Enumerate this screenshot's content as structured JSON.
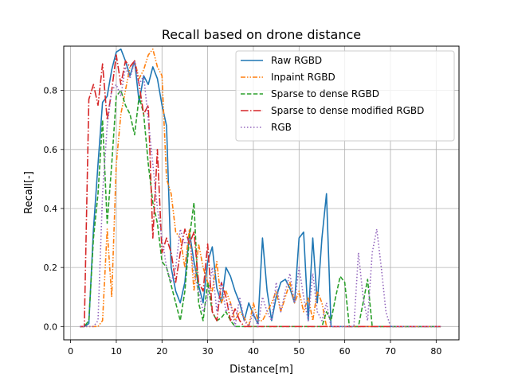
{
  "chart_data": {
    "type": "line",
    "title": "Recall based on drone distance",
    "xlabel": "Distance[m]",
    "ylabel": "Recall[-]",
    "xlim": [
      -1.5,
      85
    ],
    "ylim": [
      -0.045,
      0.95
    ],
    "xticks": [
      0,
      10,
      20,
      30,
      40,
      50,
      60,
      70,
      80
    ],
    "yticks": [
      0.0,
      0.2,
      0.4,
      0.6,
      0.8
    ],
    "xtick_labels": [
      "0",
      "10",
      "20",
      "30",
      "40",
      "50",
      "60",
      "70",
      "80"
    ],
    "ytick_labels": [
      "0.0",
      "0.2",
      "0.4",
      "0.6",
      "0.8"
    ],
    "grid": true,
    "legend_position": "top-right",
    "series": [
      {
        "name": "Raw RGBD",
        "color": "#1f77b4",
        "dash": "solid",
        "x": [
          2,
          3,
          4,
          5,
          6,
          7,
          8,
          9,
          10,
          11,
          12,
          13,
          14,
          15,
          16,
          17,
          18,
          19,
          20,
          21,
          22,
          23,
          24,
          25,
          26,
          27,
          28,
          29,
          30,
          31,
          32,
          33,
          34,
          35,
          36,
          37,
          38,
          39,
          40,
          41,
          42,
          43,
          44,
          45,
          46,
          47,
          48,
          49,
          50,
          51,
          52,
          53,
          54,
          55,
          56,
          57,
          58,
          59,
          60,
          61,
          62,
          63,
          64,
          65,
          66,
          67,
          68,
          69,
          70,
          71,
          72,
          73,
          74,
          75,
          76,
          77,
          78,
          79,
          80,
          81
        ],
        "y": [
          0,
          0,
          0.01,
          0.33,
          0.55,
          0.76,
          0.78,
          0.87,
          0.93,
          0.94,
          0.9,
          0.85,
          0.9,
          0.76,
          0.85,
          0.82,
          0.88,
          0.84,
          0.75,
          0.68,
          0.2,
          0.12,
          0.08,
          0.15,
          0.32,
          0.22,
          0.14,
          0.08,
          0.22,
          0.27,
          0.13,
          0.08,
          0.2,
          0.17,
          0.12,
          0.08,
          0.02,
          0.08,
          0.04,
          0.01,
          0.3,
          0.12,
          0.02,
          0.1,
          0.15,
          0.16,
          0.13,
          0.08,
          0.3,
          0.32,
          0.02,
          0.3,
          0.08,
          0.3,
          0.45,
          0,
          0,
          0,
          0,
          0,
          0,
          0,
          0,
          0,
          0,
          0,
          0,
          0,
          0,
          0,
          0,
          0,
          0,
          0,
          0,
          0,
          0,
          0,
          0,
          0
        ]
      },
      {
        "name": "Inpaint RGBD",
        "color": "#ff7f0e",
        "dash": "dashdotdot",
        "x": [
          2,
          3,
          4,
          5,
          6,
          7,
          8,
          9,
          10,
          11,
          12,
          13,
          14,
          15,
          16,
          17,
          18,
          19,
          20,
          21,
          22,
          23,
          24,
          25,
          26,
          27,
          28,
          29,
          30,
          31,
          32,
          33,
          34,
          35,
          36,
          37,
          38,
          39,
          40,
          41,
          42,
          43,
          44,
          45,
          46,
          47,
          48,
          49,
          50,
          51,
          52,
          53,
          54,
          55,
          56,
          57,
          58,
          59,
          60,
          61,
          62,
          63,
          64,
          65,
          66,
          67,
          68,
          69,
          70,
          71,
          72,
          73,
          74,
          75,
          76,
          77,
          78,
          79,
          80,
          81
        ],
        "y": [
          0,
          0,
          0,
          0,
          0,
          0.02,
          0.33,
          0.1,
          0.55,
          0.72,
          0.8,
          0.88,
          0.9,
          0.84,
          0.87,
          0.92,
          0.94,
          0.88,
          0.85,
          0.5,
          0.45,
          0.32,
          0.3,
          0.2,
          0.33,
          0.12,
          0.28,
          0.2,
          0.15,
          0.12,
          0.22,
          0.08,
          0.12,
          0.08,
          0.02,
          0.05,
          0.03,
          0,
          0.08,
          0.02,
          0.02,
          0.05,
          0.08,
          0.12,
          0.05,
          0.1,
          0.15,
          0.08,
          0.12,
          0.05,
          0.1,
          0.02,
          0.12,
          0.08,
          0,
          0,
          0,
          0,
          0,
          0,
          0,
          0,
          0,
          0,
          0,
          0,
          0,
          0,
          0,
          0,
          0,
          0,
          0,
          0,
          0,
          0,
          0,
          0,
          0,
          0
        ]
      },
      {
        "name": "Sparse to dense RGBD",
        "color": "#2ca02c",
        "dash": "dashed",
        "x": [
          2,
          3,
          4,
          5,
          6,
          7,
          8,
          9,
          10,
          11,
          12,
          13,
          14,
          15,
          16,
          17,
          18,
          19,
          20,
          21,
          22,
          23,
          24,
          25,
          26,
          27,
          28,
          29,
          30,
          31,
          32,
          33,
          34,
          35,
          36,
          37,
          38,
          39,
          40,
          41,
          42,
          43,
          44,
          45,
          46,
          47,
          48,
          49,
          50,
          51,
          52,
          53,
          54,
          55,
          56,
          57,
          58,
          59,
          60,
          61,
          62,
          63,
          64,
          65,
          66,
          67,
          68,
          69,
          70,
          71,
          72,
          73,
          74,
          75,
          76,
          77,
          78,
          79,
          80,
          81
        ],
        "y": [
          0,
          0,
          0.02,
          0.3,
          0.45,
          0.7,
          0.35,
          0.55,
          0.78,
          0.8,
          0.75,
          0.72,
          0.65,
          0.78,
          0.72,
          0.55,
          0.42,
          0.35,
          0.22,
          0.2,
          0.14,
          0.08,
          0.02,
          0.12,
          0.3,
          0.42,
          0.08,
          0.02,
          0.15,
          0.05,
          0.02,
          0.03,
          0.05,
          0.02,
          0,
          0,
          0,
          0,
          0,
          0,
          0,
          0,
          0,
          0,
          0,
          0,
          0,
          0,
          0,
          0,
          0,
          0,
          0,
          0,
          0.05,
          0.02,
          0.1,
          0.17,
          0.15,
          0,
          0,
          0,
          0.08,
          0.16,
          0,
          0,
          0,
          0,
          0,
          0,
          0,
          0,
          0,
          0,
          0,
          0,
          0,
          0,
          0,
          0
        ]
      },
      {
        "name": "Sparse to dense modified RGBD",
        "color": "#d62728",
        "dash": "dashdot",
        "x": [
          2,
          3,
          4,
          5,
          6,
          7,
          8,
          9,
          10,
          11,
          12,
          13,
          14,
          15,
          16,
          17,
          18,
          19,
          20,
          21,
          22,
          23,
          24,
          25,
          26,
          27,
          28,
          29,
          30,
          31,
          32,
          33,
          34,
          35,
          36,
          37,
          38,
          39,
          40,
          41,
          42,
          43,
          44,
          45,
          46,
          47,
          48,
          49,
          50,
          51,
          52,
          53,
          54,
          55,
          56,
          57,
          58,
          59,
          60,
          61,
          62,
          63,
          64,
          65,
          66,
          67,
          68,
          69,
          70,
          71,
          72,
          73,
          74,
          75,
          76,
          77,
          78,
          79,
          80,
          81
        ],
        "y": [
          0,
          0,
          0.77,
          0.82,
          0.75,
          0.89,
          0.7,
          0.8,
          0.92,
          0.82,
          0.9,
          0.88,
          0.9,
          0.82,
          0.72,
          0.75,
          0.3,
          0.6,
          0.25,
          0.3,
          0.25,
          0.15,
          0.25,
          0.33,
          0.28,
          0.32,
          0.15,
          0.12,
          0.28,
          0.05,
          0.02,
          0.15,
          0.1,
          0.02,
          0.06,
          0.02,
          0,
          0,
          0,
          0,
          0,
          0,
          0,
          0,
          0,
          0,
          0,
          0,
          0,
          0,
          0,
          0,
          0,
          0,
          0,
          0,
          0,
          0,
          0,
          0,
          0,
          0,
          0,
          0,
          0,
          0,
          0,
          0,
          0,
          0,
          0,
          0,
          0,
          0,
          0,
          0,
          0,
          0,
          0,
          0
        ]
      },
      {
        "name": "RGB",
        "color": "#9467bd",
        "dash": "dotted",
        "x": [
          2,
          3,
          4,
          5,
          6,
          7,
          8,
          9,
          10,
          11,
          12,
          13,
          14,
          15,
          16,
          17,
          18,
          19,
          20,
          21,
          22,
          23,
          24,
          25,
          26,
          27,
          28,
          29,
          30,
          31,
          32,
          33,
          34,
          35,
          36,
          37,
          38,
          39,
          40,
          41,
          42,
          43,
          44,
          45,
          46,
          47,
          48,
          49,
          50,
          51,
          52,
          53,
          54,
          55,
          56,
          57,
          58,
          59,
          60,
          61,
          62,
          63,
          64,
          65,
          66,
          67,
          68,
          69,
          70,
          71,
          72,
          73,
          74,
          75,
          76,
          77,
          78,
          79,
          80,
          81
        ],
        "y": [
          0,
          0,
          0,
          0,
          0.02,
          0.45,
          0.68,
          0.8,
          0.82,
          0.78,
          0.88,
          0.84,
          0.9,
          0.82,
          0.85,
          0.7,
          0.55,
          0.4,
          0.3,
          0.2,
          0.15,
          0.2,
          0.33,
          0.28,
          0.3,
          0.18,
          0.12,
          0.05,
          0.1,
          0.2,
          0.05,
          0.15,
          0.05,
          0.08,
          0,
          0.1,
          0.02,
          0,
          0.05,
          0,
          0.1,
          0.05,
          0.02,
          0.15,
          0.05,
          0.12,
          0.18,
          0.08,
          0.2,
          0.1,
          0.02,
          0.18,
          0.05,
          0.02,
          0.08,
          0,
          0,
          0,
          0,
          0,
          0,
          0.25,
          0.1,
          0.02,
          0.25,
          0.33,
          0.2,
          0.05,
          0,
          0,
          0,
          0,
          0,
          0,
          0,
          0,
          0,
          0,
          0,
          0
        ]
      }
    ]
  }
}
